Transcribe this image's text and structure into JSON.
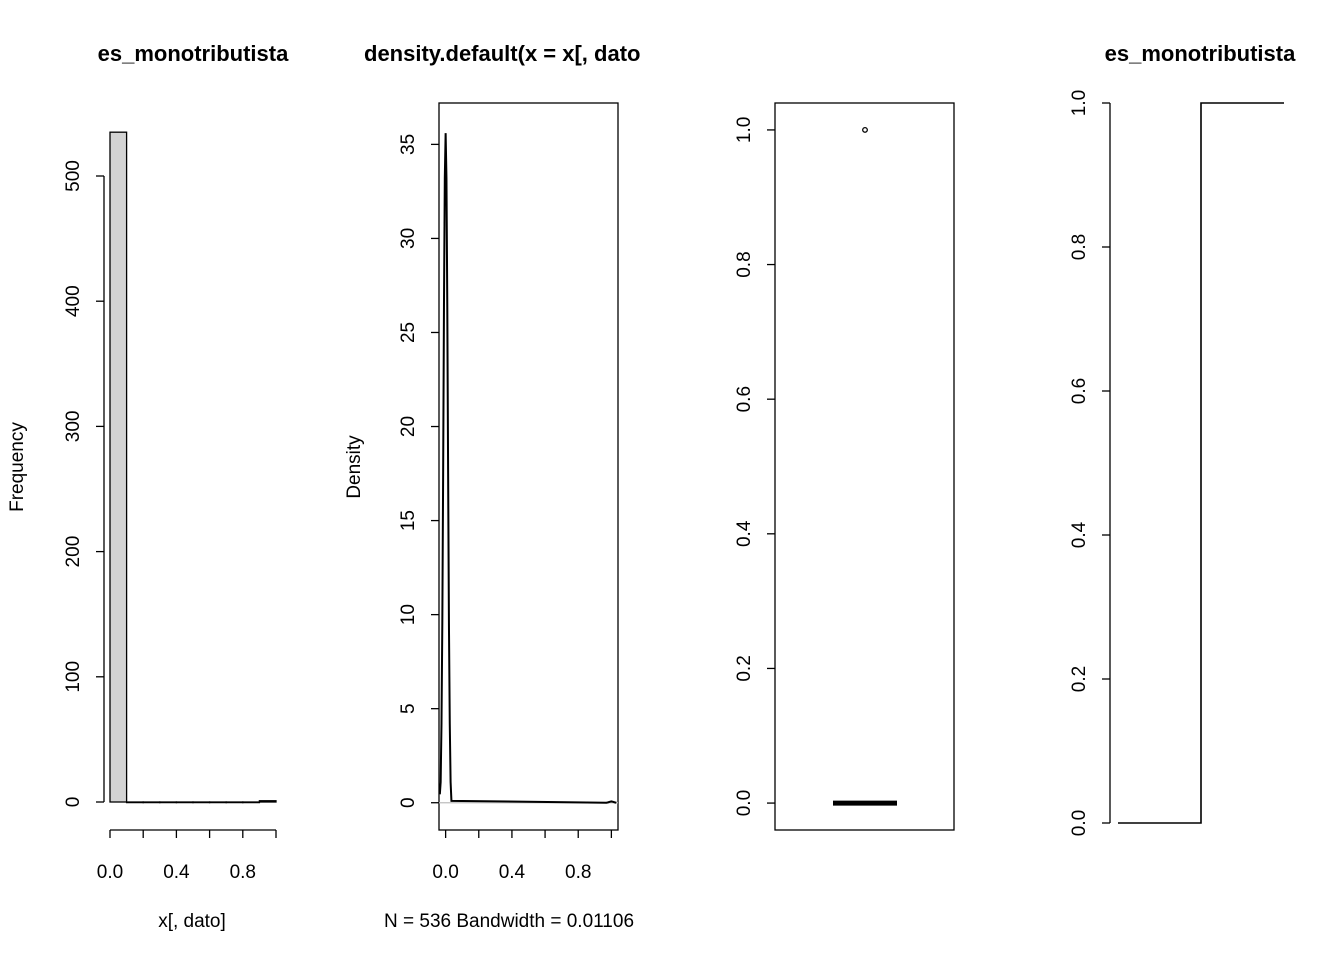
{
  "chart_data": [
    {
      "type": "bar",
      "subtype": "histogram",
      "title": "es_monotributista",
      "xlabel": "x[, dato]",
      "ylabel": "Frequency",
      "xlim": [
        0,
        1
      ],
      "ylim": [
        0,
        536
      ],
      "x_ticks": [
        0,
        0.2,
        0.4,
        0.6,
        0.8,
        1.0
      ],
      "x_tick_labels": [
        "0.0",
        "",
        "0.4",
        "",
        "0.8",
        ""
      ],
      "y_ticks": [
        0,
        100,
        200,
        300,
        400,
        500
      ],
      "y_tick_labels": [
        "0",
        "100",
        "200",
        "300",
        "400",
        "500"
      ],
      "bins": [
        {
          "from": 0.0,
          "to": 0.1,
          "count": 535
        },
        {
          "from": 0.1,
          "to": 0.2,
          "count": 0
        },
        {
          "from": 0.2,
          "to": 0.3,
          "count": 0
        },
        {
          "from": 0.3,
          "to": 0.4,
          "count": 0
        },
        {
          "from": 0.4,
          "to": 0.5,
          "count": 0
        },
        {
          "from": 0.5,
          "to": 0.6,
          "count": 0
        },
        {
          "from": 0.6,
          "to": 0.7,
          "count": 0
        },
        {
          "from": 0.7,
          "to": 0.8,
          "count": 0
        },
        {
          "from": 0.8,
          "to": 0.9,
          "count": 0
        },
        {
          "from": 0.9,
          "to": 1.0,
          "count": 1
        }
      ],
      "bar_fill": "#d3d3d3"
    },
    {
      "type": "line",
      "subtype": "density",
      "title": "density.default(x = x[, dato",
      "xlabel": "N = 536   Bandwidth = 0.01106",
      "ylabel": "Density",
      "xlim": [
        -0.04,
        1.04
      ],
      "ylim": [
        -1.45,
        37.2
      ],
      "x_ticks": [
        0,
        0.2,
        0.4,
        0.6,
        0.8,
        1.0
      ],
      "x_tick_labels": [
        "0.0",
        "",
        "0.4",
        "",
        "0.8",
        ""
      ],
      "y_ticks": [
        0,
        5,
        10,
        15,
        20,
        25,
        30,
        35
      ],
      "y_tick_labels": [
        "0",
        "5",
        "10",
        "15",
        "20",
        "25",
        "30",
        "35"
      ],
      "baseline_y": 0,
      "baseline_color": "#bebebe",
      "series": [
        {
          "x": [
            -0.035,
            -0.03,
            -0.025,
            -0.02,
            -0.015,
            -0.01,
            -0.005,
            0,
            0.005,
            0.01,
            0.015,
            0.02,
            0.025,
            0.03,
            0.035,
            0.97,
            0.98,
            0.99,
            1.0,
            1.01,
            1.02,
            1.03
          ],
          "y": [
            0.45,
            1.1,
            4.2,
            9.5,
            17.5,
            26.4,
            33.2,
            35.6,
            33.2,
            26.4,
            17.5,
            9.5,
            4.2,
            1.1,
            0.1,
            0.0,
            0.02,
            0.05,
            0.07,
            0.05,
            0.02,
            0.0
          ]
        }
      ]
    },
    {
      "type": "box",
      "ylim": [
        -0.04,
        1.04
      ],
      "y_ticks": [
        0,
        0.2,
        0.4,
        0.6,
        0.8,
        1.0
      ],
      "y_tick_labels": [
        "0.0",
        "0.2",
        "0.4",
        "0.6",
        "0.8",
        "1.0"
      ],
      "median": 0,
      "q1": 0,
      "q3": 0,
      "whisker_low": 0,
      "whisker_high": 0,
      "outliers": [
        1.0
      ]
    },
    {
      "type": "line",
      "subtype": "ecdf",
      "title": "es_monotributista",
      "xlim": [
        -0.5,
        1.5
      ],
      "ylim": [
        0,
        1
      ],
      "y_ticks": [
        0,
        0.2,
        0.4,
        0.6,
        0.8,
        1.0
      ],
      "y_tick_labels": [
        "0.0",
        "0.2",
        "0.4",
        "0.6",
        "0.8",
        "1.0"
      ],
      "series": [
        {
          "x": [
            -0.5,
            0.5,
            0.5,
            1.5
          ],
          "y": [
            0,
            0,
            1,
            1
          ]
        }
      ]
    }
  ]
}
